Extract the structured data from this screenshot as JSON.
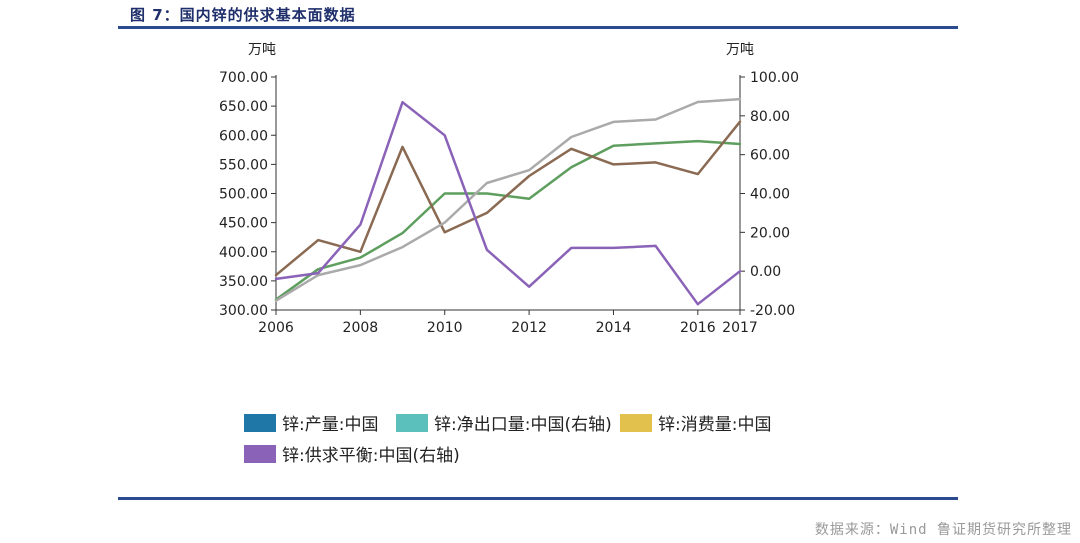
{
  "header": {
    "title": "图 7：国内锌的供求基本面数据"
  },
  "footer": {
    "source": "数据来源：Wind 鲁证期货研究所整理"
  },
  "chart_data": {
    "type": "line",
    "y_left_unit": "万吨",
    "y_right_unit": "万吨",
    "y_left_range": [
      300,
      700
    ],
    "y_right_range": [
      -20,
      100
    ],
    "y_left_ticks": [
      "700.00",
      "650.00",
      "600.00",
      "550.00",
      "500.00",
      "450.00",
      "400.00",
      "350.00",
      "300.00"
    ],
    "y_right_ticks": [
      "100.00",
      "80.00",
      "60.00",
      "40.00",
      "20.00",
      "0.00",
      "-20.00"
    ],
    "x_ticks": [
      "2006",
      "2008",
      "2010",
      "2012",
      "2014",
      "2016",
      "2017"
    ],
    "legend_colors": {
      "production": "#1f77a8",
      "net_import": "#5bbfbb",
      "consumption": "#e2c14c",
      "balance": "#8a63b8"
    },
    "legend": [
      "锌:产量:中国",
      "锌:净出口量:中国(右轴)",
      "锌:消费量:中国",
      "锌:供求平衡:中国(右轴)"
    ],
    "series": [
      {
        "name": "锌:产量:中国",
        "axis": "left",
        "color": "#5e9e5e",
        "x": [
          2006,
          2007,
          2008,
          2009,
          2010,
          2011,
          2012,
          2013,
          2014,
          2015,
          2016,
          2017
        ],
        "values": [
          318,
          370,
          390,
          432,
          500,
          500,
          491,
          545,
          582,
          586,
          590,
          585
        ]
      },
      {
        "name": "锌:净出口量:中国(右轴)",
        "axis": "right",
        "color": "#8a6a52",
        "x": [
          2006,
          2007,
          2008,
          2009,
          2010,
          2011,
          2012,
          2013,
          2014,
          2015,
          2016,
          2017
        ],
        "values": [
          -2,
          16,
          10,
          64,
          20,
          30,
          49,
          63,
          55,
          56,
          50,
          77
        ]
      },
      {
        "name": "锌:消费量:中国",
        "axis": "left",
        "color": "#aaaaaa",
        "x": [
          2006,
          2007,
          2008,
          2009,
          2010,
          2011,
          2012,
          2013,
          2014,
          2015,
          2016,
          2017
        ],
        "values": [
          316,
          360,
          377,
          408,
          450,
          518,
          540,
          597,
          623,
          627,
          657,
          662
        ]
      },
      {
        "name": "锌:供求平衡:中国(右轴)",
        "axis": "right",
        "color": "#8a63b8",
        "x": [
          2006,
          2007,
          2008,
          2009,
          2010,
          2011,
          2012,
          2013,
          2014,
          2015,
          2016,
          2017
        ],
        "values": [
          -4,
          -1,
          24,
          87,
          70,
          11,
          -8,
          12,
          12,
          13,
          -17,
          0
        ]
      }
    ]
  }
}
